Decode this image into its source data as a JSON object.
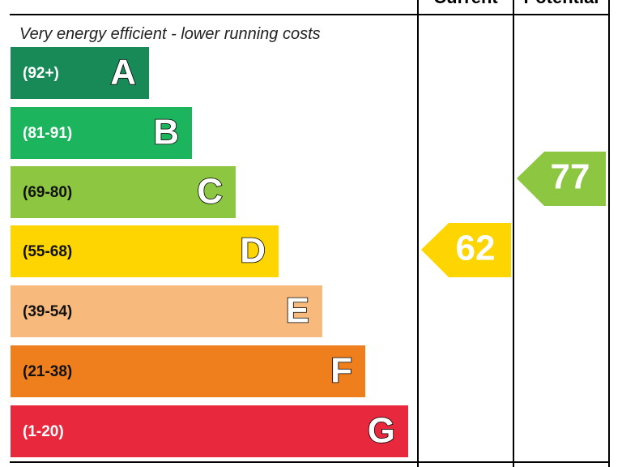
{
  "header": {
    "current": "Current",
    "potential": "Potential"
  },
  "subtitle": "Very energy efficient - lower running costs",
  "bands": [
    {
      "range": "(92+)",
      "letter": "A",
      "color": "#178a57",
      "text_color": "#ffffff"
    },
    {
      "range": "(81-91)",
      "letter": "B",
      "color": "#1db45e",
      "text_color": "#ffffff"
    },
    {
      "range": "(69-80)",
      "letter": "C",
      "color": "#8dc641",
      "text_color": "#111111"
    },
    {
      "range": "(55-68)",
      "letter": "D",
      "color": "#ffd500",
      "text_color": "#111111"
    },
    {
      "range": "(39-54)",
      "letter": "E",
      "color": "#f8b97c",
      "text_color": "#111111"
    },
    {
      "range": "(21-38)",
      "letter": "F",
      "color": "#ef7e1d",
      "text_color": "#111111"
    },
    {
      "range": "(1-20)",
      "letter": "G",
      "color": "#e8283c",
      "text_color": "#ffffff"
    }
  ],
  "current": {
    "rating": "62",
    "color": "#ffd500"
  },
  "potential": {
    "rating": "77",
    "color": "#8dc641"
  }
}
